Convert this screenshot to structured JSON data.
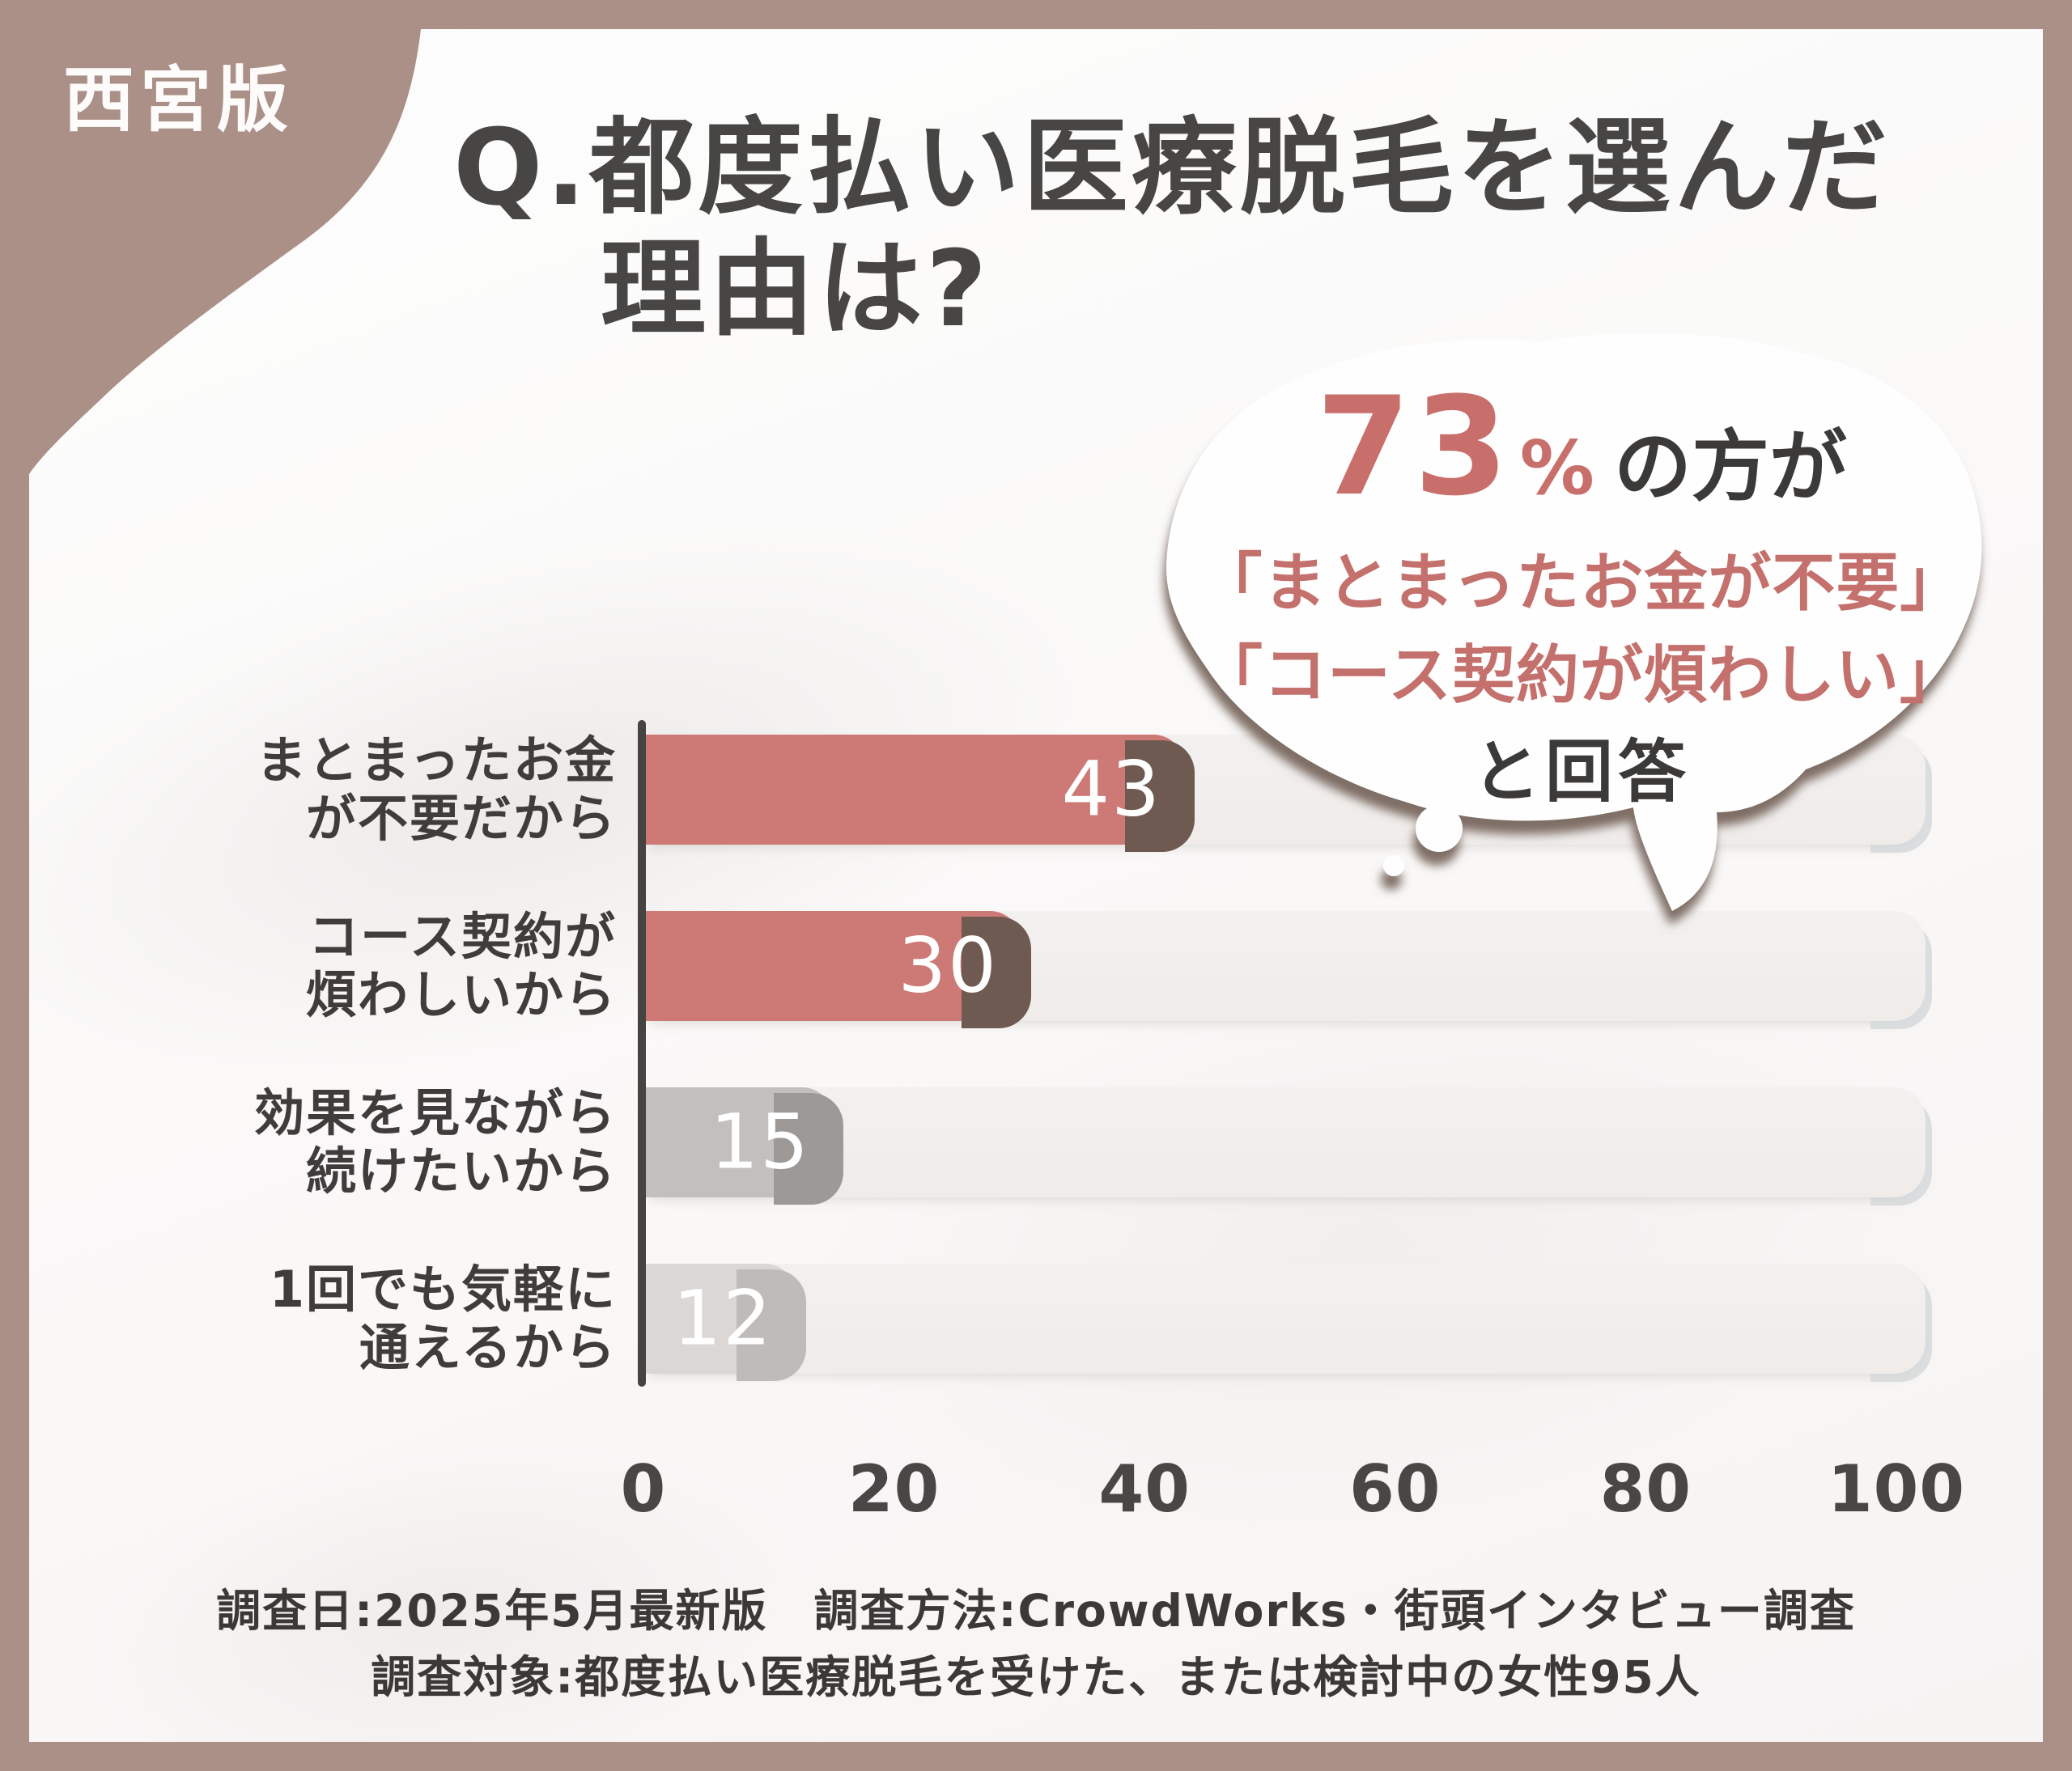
{
  "badge": {
    "label": "西宮版"
  },
  "title": {
    "line1": "Q.都度払い医療脱毛を選んだ",
    "line2": "理由は?"
  },
  "callout": {
    "stat_value": "73",
    "percent_sign": "%",
    "suffix": "の方が",
    "quote1": "「まとまったお金が不要」",
    "quote2": "「コース契約が煩わしい」",
    "closing": "と回答"
  },
  "chart_data": {
    "type": "bar",
    "orientation": "horizontal",
    "title": "Q.都度払い医療脱毛を選んだ理由は?",
    "unit": "% of respondents",
    "categories": [
      "まとまったお金が不要だから",
      "コース契約が煩わしいから",
      "効果を見ながら続けたいから",
      "1回でも気軽に通えるから"
    ],
    "label_lines": [
      [
        "まとまったお金",
        "が不要だから"
      ],
      [
        "コース契約が",
        "煩わしいから"
      ],
      [
        "効果を見ながら",
        "続けたいから"
      ],
      [
        "1回でも気軽に",
        "通えるから"
      ]
    ],
    "values": [
      43,
      30,
      15,
      12
    ],
    "xlim": [
      0,
      100
    ],
    "xticks": [
      0,
      20,
      40,
      60,
      80,
      100
    ],
    "grid": false,
    "legend": false,
    "annotation": "73%の方が「まとまったお金が不要」「コース契約が煩わしい」と回答",
    "bar_colors": [
      "#cd7976",
      "#cd7976",
      "#c2bfbd",
      "#dad7d5"
    ],
    "cap_shadow_colors": [
      "#6f5a51",
      "#6f5a51",
      "#9d9997",
      "#bfbbb9"
    ],
    "track_color": "#f1eeed",
    "value_label_color": "#ffffff",
    "axis_color": "#454443"
  },
  "footer": {
    "line1": "調査日:2025年5月最新版　調査方法:CrowdWorks・街頭インタビュー調査",
    "line2": "調査対象:都度払い医療脱毛を受けた、または検討中の女性95人"
  },
  "colors": {
    "frame_brown": "#ab9088",
    "salmon": "#cd7976",
    "dark_text": "#474645",
    "bubble_fill": "#fefefe",
    "bubble_shadow": "#6e5b52"
  }
}
